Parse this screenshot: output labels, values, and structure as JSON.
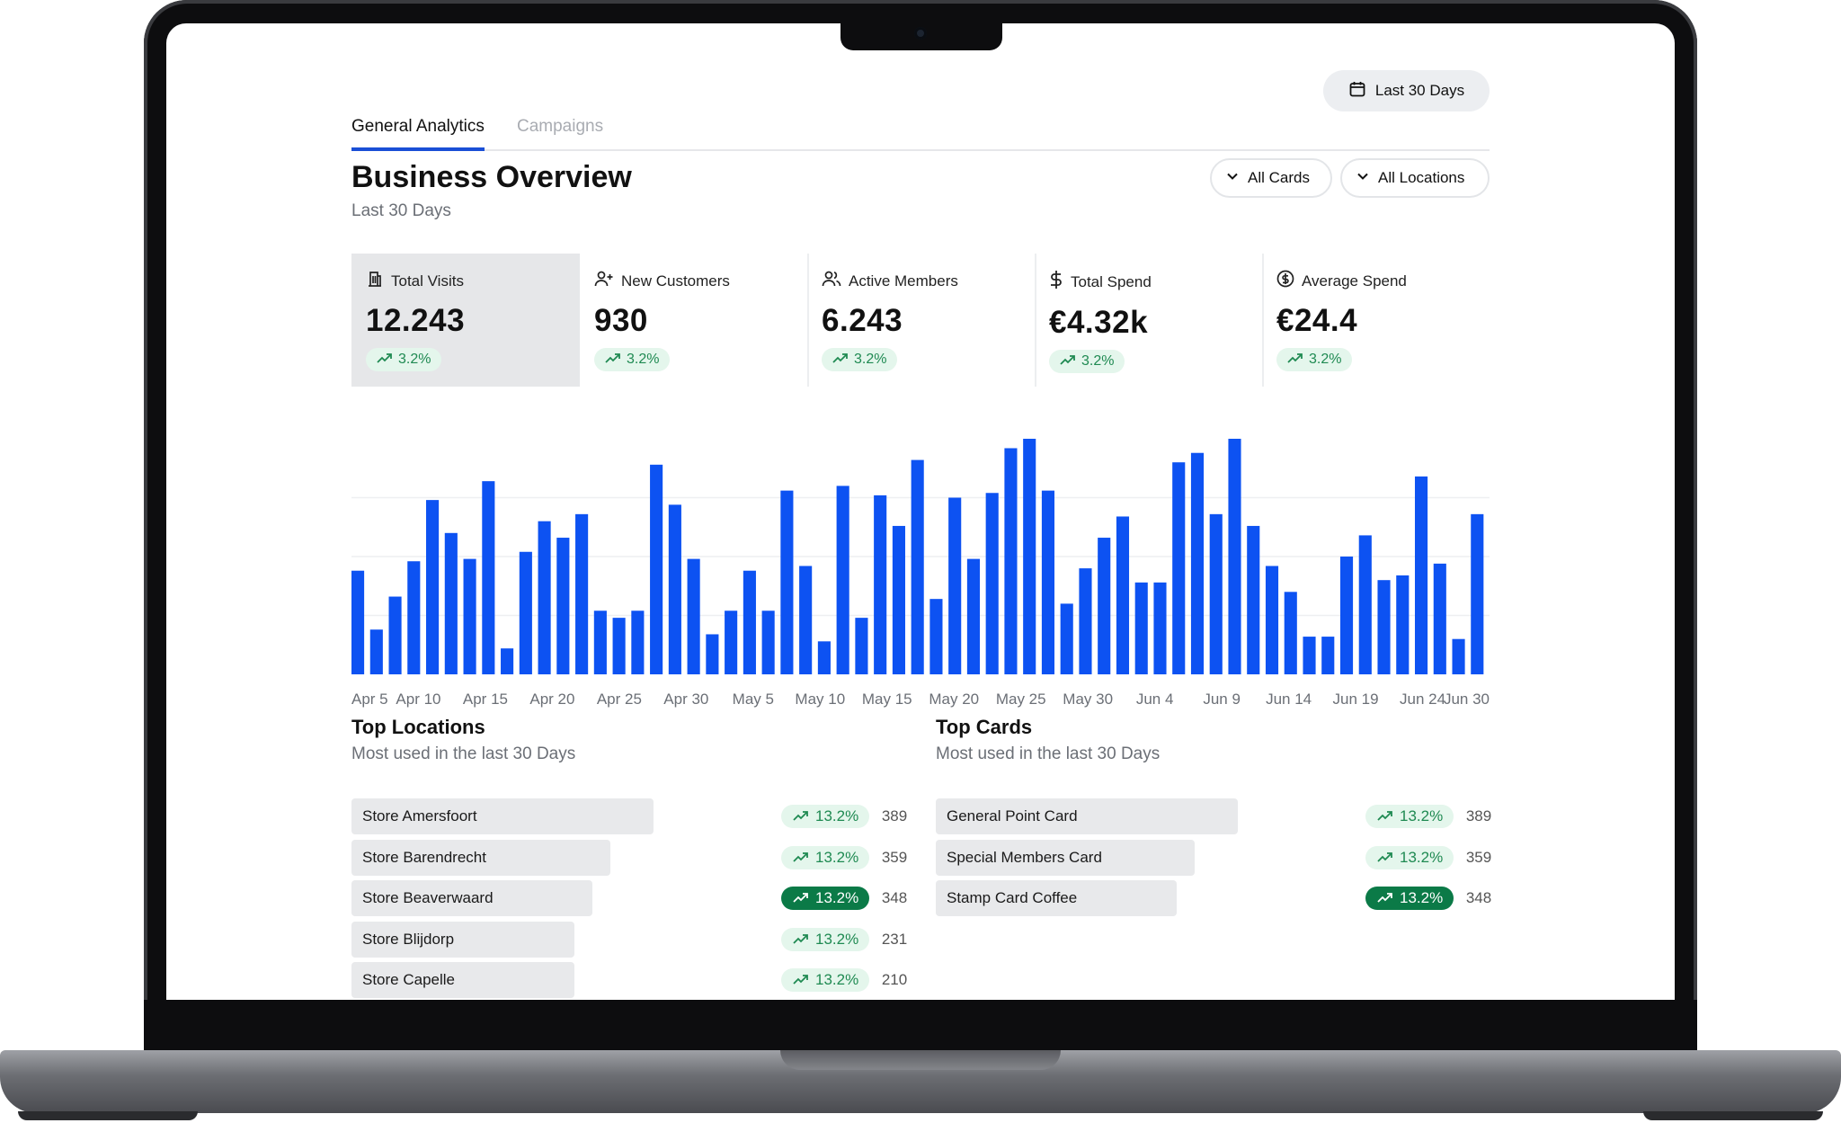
{
  "tabs": [
    {
      "label": "General Analytics",
      "active": true
    },
    {
      "label": "Campaigns",
      "active": false
    }
  ],
  "date_range_button": {
    "label": "Last 30 Days",
    "icon": "calendar-icon"
  },
  "page": {
    "title": "Business Overview",
    "subtitle": "Last 30 Days"
  },
  "filters": [
    {
      "label": "All Cards",
      "icon": "chevron-down-icon"
    },
    {
      "label": "All Locations",
      "icon": "chevron-down-icon"
    }
  ],
  "kpis": [
    {
      "label": "Total Visits",
      "value": "12.243",
      "change": "3.2%",
      "icon": "building-icon",
      "selected": true
    },
    {
      "label": "New Customers",
      "value": "930",
      "change": "3.2%",
      "icon": "user-plus-icon",
      "selected": false
    },
    {
      "label": "Active Members",
      "value": "6.243",
      "change": "3.2%",
      "icon": "users-icon",
      "selected": false
    },
    {
      "label": "Total Spend",
      "value": "€4.32k",
      "change": "3.2%",
      "icon": "dollar-icon",
      "selected": false
    },
    {
      "label": "Average Spend",
      "value": "€24.4",
      "change": "3.2%",
      "icon": "coin-icon",
      "selected": false
    }
  ],
  "colors": {
    "accent": "#1a4fd6",
    "bar": "#0d52f2",
    "positive": "#1f8a52",
    "positive_bg": "#e4f6ec",
    "positive_dark": "#0b7a47"
  },
  "chart_data": {
    "type": "bar",
    "x_tick_labels": [
      "Apr 5",
      "Apr 10",
      "Apr 15",
      "Apr 20",
      "Apr 25",
      "Apr 30",
      "May 5",
      "May 10",
      "May 15",
      "May 20",
      "May 25",
      "May 30",
      "Jun 4",
      "Jun 9",
      "Jun 14",
      "Jun 19",
      "Jun 24",
      "Jun 30"
    ],
    "values": [
      44,
      19,
      33,
      48,
      74,
      60,
      49,
      82,
      11,
      52,
      65,
      58,
      68,
      27,
      24,
      27,
      89,
      72,
      49,
      17,
      27,
      44,
      27,
      78,
      46,
      14,
      80,
      24,
      76,
      63,
      91,
      32,
      75,
      49,
      77,
      96,
      100,
      78,
      30,
      45,
      58,
      67,
      39,
      39,
      90,
      94,
      68,
      100,
      63,
      46,
      35,
      16,
      16,
      50,
      59,
      40,
      42,
      84,
      47,
      15,
      68
    ],
    "ylim": [
      0,
      100
    ],
    "grid": true,
    "xlabel": "",
    "ylabel": ""
  },
  "top_locations": {
    "title": "Top Locations",
    "subtitle": "Most used in the last 30 Days",
    "items": [
      {
        "label": "Store Amersfoort",
        "change": "13.2%",
        "count": "389",
        "share": 1.0,
        "highlight": false
      },
      {
        "label": "Store Barendrecht",
        "change": "13.2%",
        "count": "359",
        "share": 0.856,
        "highlight": false
      },
      {
        "label": "Store Beaverwaard",
        "change": "13.2%",
        "count": "348",
        "share": 0.797,
        "highlight": true
      },
      {
        "label": "Store Blijdorp",
        "change": "13.2%",
        "count": "231",
        "share": 0.737,
        "highlight": false
      },
      {
        "label": "Store Capelle",
        "change": "13.2%",
        "count": "210",
        "share": 0.737,
        "highlight": false
      }
    ]
  },
  "top_cards": {
    "title": "Top Cards",
    "subtitle": "Most used in the last 30 Days",
    "items": [
      {
        "label": "General Point Card",
        "change": "13.2%",
        "count": "389",
        "share": 1.0,
        "highlight": false
      },
      {
        "label": "Special Members Card",
        "change": "13.2%",
        "count": "359",
        "share": 0.856,
        "highlight": false
      },
      {
        "label": "Stamp Card Coffee",
        "change": "13.2%",
        "count": "348",
        "share": 0.797,
        "highlight": true
      }
    ]
  }
}
